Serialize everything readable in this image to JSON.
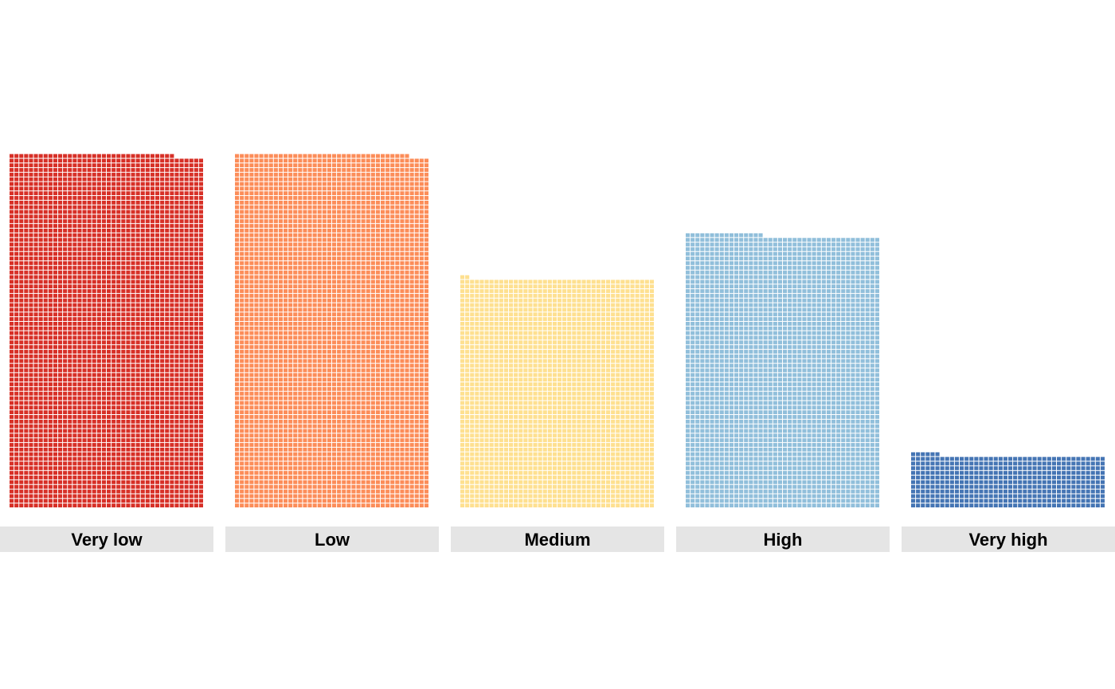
{
  "chart_data": {
    "type": "waffle",
    "categories": [
      "Very low",
      "Low",
      "Medium",
      "High",
      "Very high"
    ],
    "values": [
      3034,
      3036,
      1962,
      2336,
      446
    ],
    "units_per_row": 40,
    "colors": [
      "#d73027",
      "#fc8d59",
      "#fee090",
      "#91bfdb",
      "#4575b4"
    ],
    "title": "",
    "xlabel": "",
    "ylabel": "",
    "legend": "none",
    "grid": false,
    "facet_strip_color": "#e5e5e5"
  }
}
